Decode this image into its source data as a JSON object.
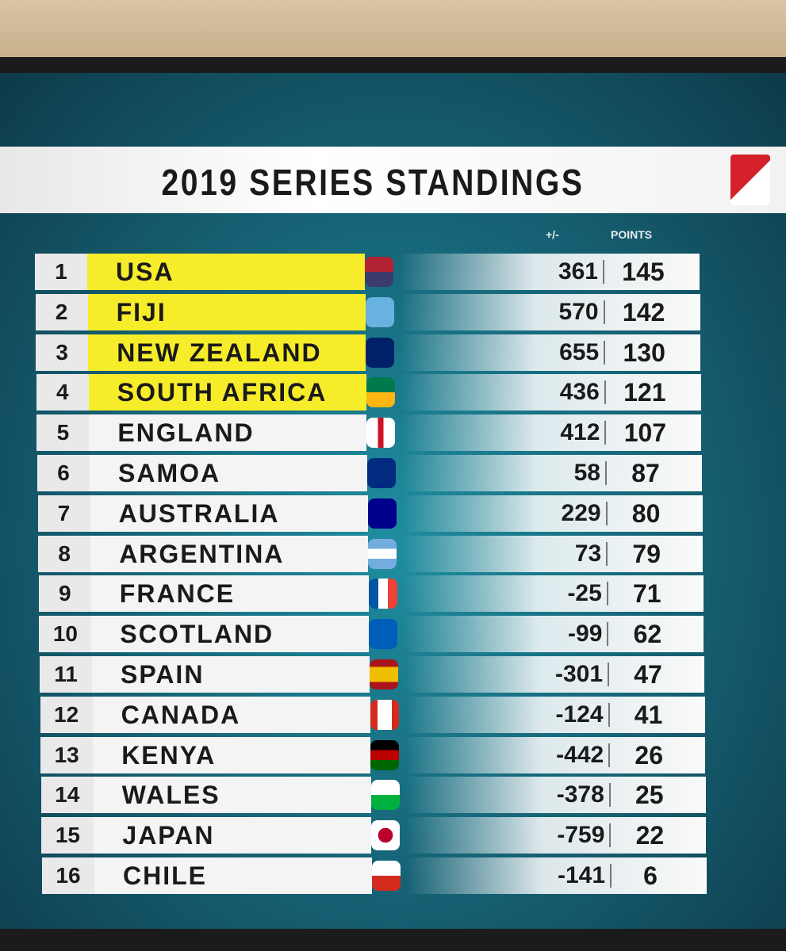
{
  "header": {
    "title": "2019 SERIES STANDINGS"
  },
  "table": {
    "columns": [
      "+/-",
      "POINTS"
    ],
    "rows": [
      {
        "rank": 1,
        "team": "USA",
        "diff": 361,
        "points": 145
      },
      {
        "rank": 2,
        "team": "FIJI",
        "diff": 570,
        "points": 142
      },
      {
        "rank": 3,
        "team": "NEW ZEALAND",
        "diff": 655,
        "points": 130
      },
      {
        "rank": 4,
        "team": "SOUTH AFRICA",
        "diff": 436,
        "points": 121
      },
      {
        "rank": 5,
        "team": "ENGLAND",
        "diff": 412,
        "points": 107
      },
      {
        "rank": 6,
        "team": "SAMOA",
        "diff": 58,
        "points": 87
      },
      {
        "rank": 7,
        "team": "AUSTRALIA",
        "diff": 229,
        "points": 80
      },
      {
        "rank": 8,
        "team": "ARGENTINA",
        "diff": 73,
        "points": 79
      },
      {
        "rank": 9,
        "team": "FRANCE",
        "diff": -25,
        "points": 71
      },
      {
        "rank": 10,
        "team": "SCOTLAND",
        "diff": -99,
        "points": 62
      },
      {
        "rank": 11,
        "team": "SPAIN",
        "diff": -301,
        "points": 47
      },
      {
        "rank": 12,
        "team": "CANADA",
        "diff": -124,
        "points": 41
      },
      {
        "rank": 13,
        "team": "KENYA",
        "diff": -442,
        "points": 26
      },
      {
        "rank": 14,
        "team": "WALES",
        "diff": -378,
        "points": 25
      },
      {
        "rank": 15,
        "team": "JAPAN",
        "diff": -759,
        "points": 22
      },
      {
        "rank": 16,
        "team": "CHILE",
        "diff": -141,
        "points": 6
      }
    ]
  }
}
